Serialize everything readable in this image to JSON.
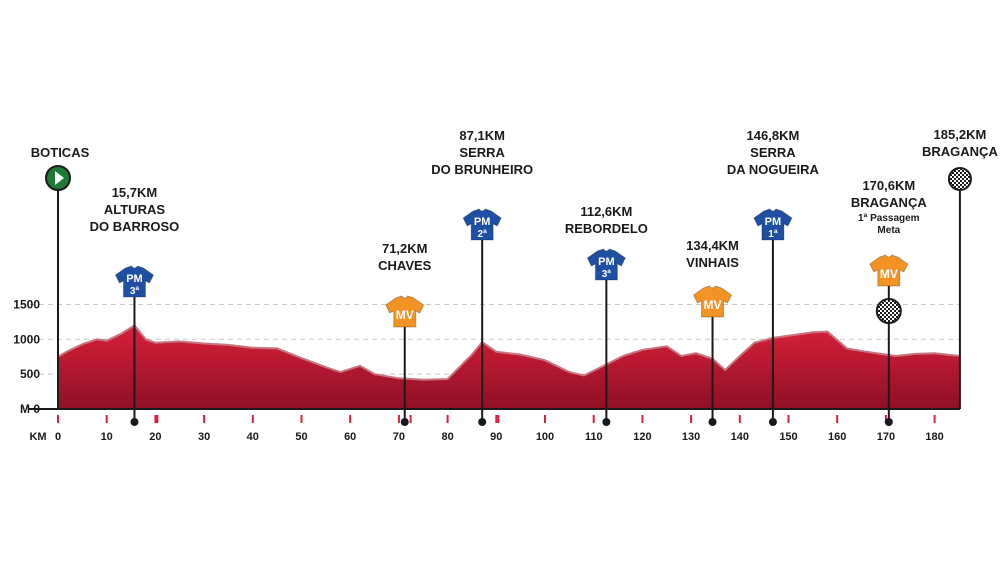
{
  "chart_data": {
    "type": "area",
    "xlabel": "KM",
    "ylabel": "M",
    "x_ticks": [
      0,
      10,
      20,
      30,
      40,
      50,
      60,
      70,
      80,
      90,
      100,
      110,
      120,
      130,
      140,
      150,
      160,
      170,
      180
    ],
    "y_ticks": [
      0,
      500,
      1000,
      1500
    ],
    "xlim": [
      0,
      185.2
    ],
    "ylim": [
      0,
      1500
    ],
    "grid": true,
    "colors": {
      "profile_fill": "#d8203a",
      "profile_dark": "#8f1025",
      "profile_line": "#c9757f",
      "pm": "#1f4fa3",
      "mv": "#f39325",
      "start": "#1f7a3a"
    },
    "profile": {
      "x": [
        0,
        2,
        5,
        8,
        10,
        13,
        15.7,
        18,
        20,
        25,
        30,
        35,
        40,
        45,
        50,
        55,
        58,
        62,
        65,
        70,
        75,
        80,
        85,
        87.1,
        90,
        95,
        100,
        105,
        108,
        112.6,
        116,
        120,
        125,
        128,
        131,
        134.4,
        137,
        140,
        143,
        146.8,
        150,
        155,
        158,
        162,
        166,
        170,
        172,
        176,
        180,
        185.2
      ],
      "elev": [
        750,
        830,
        930,
        1000,
        980,
        1080,
        1200,
        1000,
        950,
        970,
        940,
        920,
        880,
        870,
        730,
        600,
        530,
        620,
        500,
        440,
        420,
        430,
        780,
        960,
        820,
        780,
        700,
        530,
        480,
        640,
        760,
        850,
        900,
        760,
        800,
        720,
        560,
        760,
        950,
        1020,
        1050,
        1100,
        1110,
        870,
        820,
        780,
        760,
        790,
        800,
        760
      ]
    },
    "markers": [
      {
        "type": "start",
        "km": 0,
        "name": "BOTICAS"
      },
      {
        "type": "pm",
        "km": 15.7,
        "cat": "3ª",
        "km_label": "15,7KM",
        "name": [
          "ALTURAS",
          "DO BARROSO"
        ]
      },
      {
        "type": "mv",
        "km": 71.2,
        "km_label": "71,2KM",
        "name": [
          "CHAVES"
        ]
      },
      {
        "type": "pm",
        "km": 87.1,
        "cat": "2ª",
        "km_label": "87,1KM",
        "name": [
          "SERRA",
          "DO BRUNHEIRO"
        ]
      },
      {
        "type": "pm",
        "km": 112.6,
        "cat": "3ª",
        "km_label": "112,6KM",
        "name": [
          "REBORDELO"
        ]
      },
      {
        "type": "mv",
        "km": 134.4,
        "km_label": "134,4KM",
        "name": [
          "VINHAIS"
        ]
      },
      {
        "type": "pm",
        "km": 146.8,
        "cat": "1ª",
        "km_label": "146,8KM",
        "name": [
          "SERRA",
          "DA NOGUEIRA"
        ]
      },
      {
        "type": "mv-finish",
        "km": 170.6,
        "km_label": "170,6KM",
        "name": [
          "BRAGANÇA"
        ],
        "sub": [
          "1ª Passagem",
          "Meta"
        ]
      },
      {
        "type": "finish",
        "km": 185.2,
        "km_label": "185,2KM",
        "name": "BRAGANÇA"
      }
    ],
    "jersey_labels": {
      "pm": "PM",
      "mv": "MV"
    },
    "sprint_ticks_km": [
      20,
      72,
      90
    ]
  }
}
